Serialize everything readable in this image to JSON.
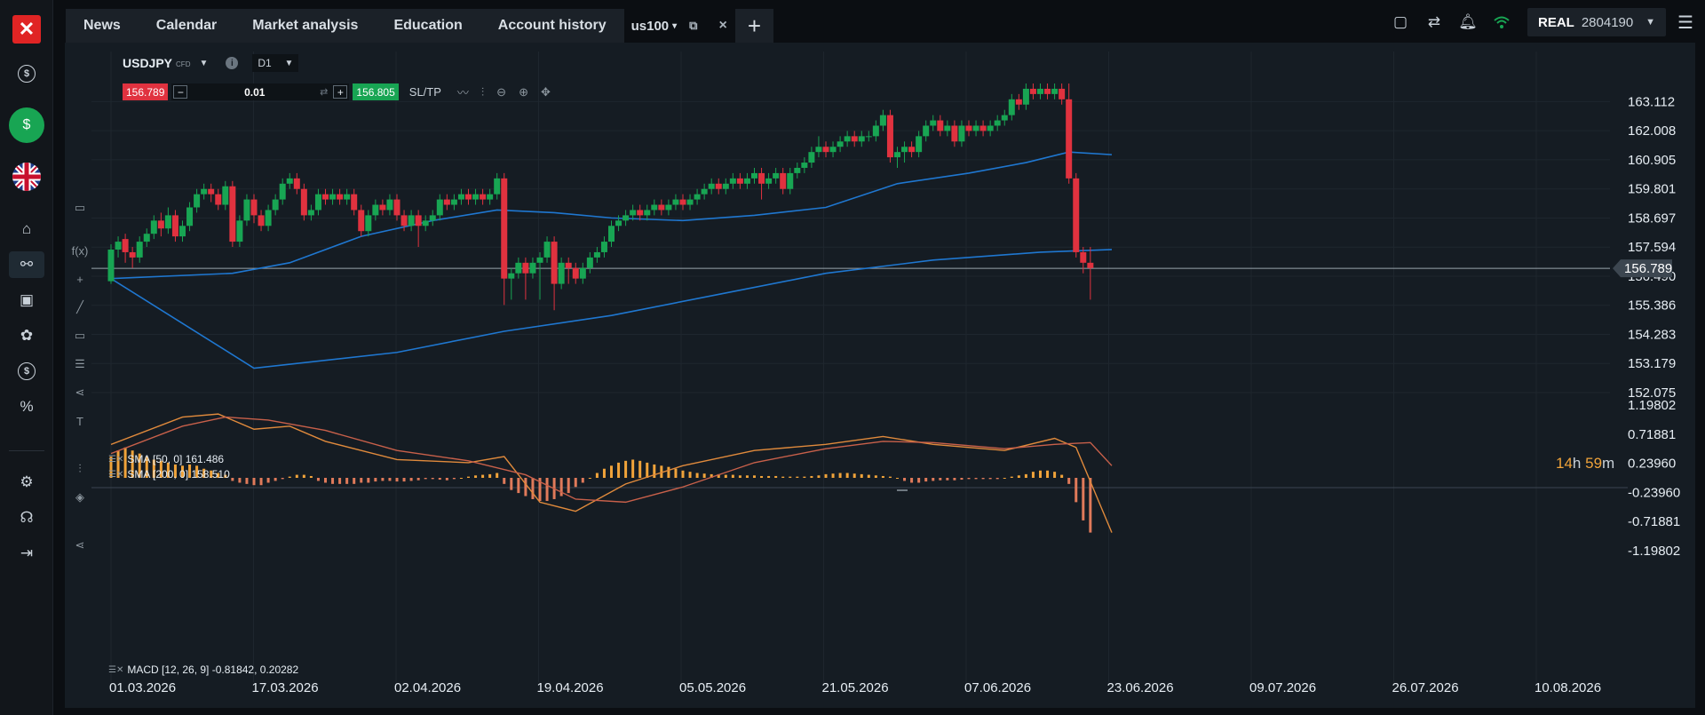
{
  "rail": {
    "logo": "✕",
    "items": [
      "dollar",
      "dollar-active",
      "flag-uk",
      "home",
      "chart",
      "news",
      "piggy",
      "coins",
      "percent",
      "settings",
      "support",
      "logout"
    ]
  },
  "tabs": [
    {
      "label": "News"
    },
    {
      "label": "Calendar"
    },
    {
      "label": "Market analysis"
    },
    {
      "label": "Education"
    },
    {
      "label": "Account history"
    }
  ],
  "active_tab": {
    "label": "us100",
    "caret": "▾",
    "close": "×"
  },
  "add_tab": "+",
  "account": {
    "type": "REAL",
    "number": "2804190"
  },
  "instrument": {
    "symbol": "USDJPY",
    "tag": "CFD",
    "info": "i",
    "timeframe": "D1"
  },
  "trade": {
    "sell": "156.789",
    "minus": "−",
    "lot": "0.01",
    "plus": "+",
    "buy": "156.805",
    "sltp": "SL/TP"
  },
  "indicators": {
    "sma50": "SMA [50, 0] 161.486",
    "sma200": "SMA [200, 0] 158.510",
    "macd": "MACD [12, 26, 9] -0.81842, 0.20282"
  },
  "timer": {
    "h": "14",
    "h_unit": "h",
    "m": "59",
    "m_unit": "m"
  },
  "colors": {
    "up": "#18a553",
    "down": "#e0323f",
    "sma": "#1f77d0",
    "macd_line": "#e08a3c",
    "signal_line": "#c8604a",
    "hist": "#f0a33a"
  },
  "chart_data": {
    "type": "candlestick",
    "title": "USDJPY D1",
    "x_ticks": [
      "01.03.2026",
      "17.03.2026",
      "02.04.2026",
      "19.04.2026",
      "05.05.2026",
      "21.05.2026",
      "07.06.2026",
      "23.06.2026",
      "09.07.2026",
      "26.07.2026",
      "10.08.2026"
    ],
    "price_ticks": [
      "163.112",
      "162.008",
      "160.905",
      "159.801",
      "158.697",
      "157.594",
      "156.490",
      "155.386",
      "154.283",
      "153.179",
      "152.075"
    ],
    "current_price": "156.789",
    "ylim": [
      152.075,
      163.8
    ],
    "macd_ticks": [
      "1.19802",
      "0.71881",
      "0.23960",
      "-0.23960",
      "-0.71881",
      "-1.19802"
    ],
    "macd_ylim": [
      -1.19802,
      1.19802
    ],
    "candles": [
      [
        0,
        156.3,
        157.5,
        156.2,
        157.7
      ],
      [
        1,
        157.5,
        157.8,
        157.2,
        158.0
      ],
      [
        2,
        157.9,
        157.4,
        157.0,
        158.1
      ],
      [
        3,
        157.4,
        157.2,
        156.8,
        157.6
      ],
      [
        4,
        157.2,
        157.8,
        157.0,
        158.0
      ],
      [
        5,
        157.8,
        158.1,
        157.6,
        158.3
      ],
      [
        6,
        158.1,
        158.6,
        157.9,
        158.8
      ],
      [
        7,
        158.6,
        158.3,
        158.0,
        158.9
      ],
      [
        8,
        158.3,
        158.8,
        158.1,
        159.1
      ],
      [
        9,
        158.8,
        158.0,
        157.8,
        159.0
      ],
      [
        10,
        158.0,
        158.4,
        157.8,
        158.6
      ],
      [
        11,
        158.4,
        159.1,
        158.2,
        159.3
      ],
      [
        12,
        159.1,
        159.6,
        158.9,
        159.8
      ],
      [
        13,
        159.6,
        159.8,
        159.4,
        160.0
      ],
      [
        14,
        159.8,
        159.6,
        159.3,
        160.0
      ],
      [
        15,
        159.6,
        159.2,
        159.0,
        159.8
      ],
      [
        16,
        159.2,
        159.9,
        159.0,
        160.1
      ],
      [
        17,
        159.9,
        157.8,
        157.6,
        160.1
      ],
      [
        18,
        157.8,
        158.6,
        157.6,
        158.8
      ],
      [
        19,
        158.6,
        159.4,
        158.4,
        159.6
      ],
      [
        20,
        159.4,
        158.8,
        158.5,
        159.6
      ],
      [
        21,
        158.8,
        158.4,
        158.2,
        159.0
      ],
      [
        22,
        158.4,
        159.0,
        158.2,
        159.2
      ],
      [
        23,
        159.0,
        159.4,
        158.8,
        159.6
      ],
      [
        24,
        159.4,
        160.0,
        159.2,
        160.2
      ],
      [
        25,
        160.0,
        160.2,
        159.8,
        160.4
      ],
      [
        26,
        160.2,
        159.8,
        159.6,
        160.4
      ],
      [
        27,
        159.8,
        158.8,
        158.6,
        160.0
      ],
      [
        28,
        158.8,
        159.0,
        158.6,
        159.2
      ],
      [
        29,
        159.0,
        159.6,
        158.8,
        159.8
      ],
      [
        30,
        159.6,
        159.4,
        159.2,
        159.8
      ],
      [
        31,
        159.4,
        159.6,
        159.2,
        159.8
      ],
      [
        32,
        159.6,
        159.4,
        159.2,
        159.8
      ],
      [
        33,
        159.4,
        159.6,
        159.2,
        159.8
      ],
      [
        34,
        159.6,
        159.0,
        158.8,
        159.8
      ],
      [
        35,
        159.0,
        158.2,
        158.0,
        159.2
      ],
      [
        36,
        158.2,
        158.8,
        158.0,
        159.0
      ],
      [
        37,
        158.8,
        159.2,
        158.6,
        159.4
      ],
      [
        38,
        159.2,
        159.0,
        158.8,
        159.4
      ],
      [
        39,
        159.0,
        159.4,
        158.8,
        159.6
      ],
      [
        40,
        159.4,
        158.8,
        158.6,
        159.6
      ],
      [
        41,
        158.8,
        158.4,
        158.2,
        159.0
      ],
      [
        42,
        158.4,
        158.8,
        158.2,
        159.0
      ],
      [
        43,
        158.8,
        158.4,
        157.6,
        159.0
      ],
      [
        44,
        158.4,
        158.6,
        158.2,
        158.8
      ],
      [
        45,
        158.6,
        158.8,
        158.4,
        159.0
      ],
      [
        46,
        158.8,
        159.4,
        158.6,
        159.6
      ],
      [
        47,
        159.4,
        159.2,
        159.0,
        159.6
      ],
      [
        48,
        159.2,
        159.4,
        159.0,
        159.6
      ],
      [
        49,
        159.4,
        159.6,
        159.2,
        159.8
      ],
      [
        50,
        159.6,
        159.4,
        159.2,
        159.8
      ],
      [
        51,
        159.4,
        159.6,
        159.2,
        159.8
      ],
      [
        52,
        159.6,
        159.4,
        159.2,
        159.8
      ],
      [
        53,
        159.4,
        159.6,
        159.2,
        159.8
      ],
      [
        54,
        159.6,
        160.2,
        159.4,
        160.4
      ],
      [
        55,
        160.2,
        156.4,
        155.4,
        160.4
      ],
      [
        56,
        156.4,
        156.6,
        155.6,
        156.8
      ],
      [
        57,
        156.6,
        157.0,
        156.4,
        157.2
      ],
      [
        58,
        157.0,
        156.6,
        155.6,
        157.2
      ],
      [
        59,
        156.6,
        157.0,
        156.4,
        157.2
      ],
      [
        60,
        157.0,
        157.2,
        155.6,
        157.4
      ],
      [
        61,
        157.2,
        157.8,
        157.0,
        158.0
      ],
      [
        62,
        157.8,
        156.2,
        155.2,
        158.0
      ],
      [
        63,
        156.2,
        157.0,
        156.0,
        157.2
      ],
      [
        64,
        157.0,
        156.8,
        156.2,
        157.2
      ],
      [
        65,
        156.8,
        156.4,
        156.2,
        157.0
      ],
      [
        66,
        156.4,
        156.8,
        156.2,
        157.0
      ],
      [
        67,
        156.8,
        157.2,
        156.6,
        157.4
      ],
      [
        68,
        157.2,
        157.4,
        157.0,
        157.6
      ],
      [
        69,
        157.4,
        157.8,
        157.2,
        158.0
      ],
      [
        70,
        157.8,
        158.4,
        157.6,
        158.6
      ],
      [
        71,
        158.4,
        158.6,
        158.2,
        158.8
      ],
      [
        72,
        158.6,
        158.8,
        158.4,
        159.0
      ],
      [
        73,
        158.8,
        159.0,
        158.6,
        159.2
      ],
      [
        74,
        159.0,
        158.8,
        158.6,
        159.2
      ],
      [
        75,
        158.8,
        159.0,
        158.6,
        159.2
      ],
      [
        76,
        159.0,
        159.2,
        158.8,
        159.4
      ],
      [
        77,
        159.2,
        159.0,
        158.8,
        159.4
      ],
      [
        78,
        159.0,
        159.2,
        158.8,
        159.4
      ],
      [
        79,
        159.2,
        159.4,
        159.0,
        159.6
      ],
      [
        80,
        159.4,
        159.2,
        159.0,
        159.6
      ],
      [
        81,
        159.2,
        159.4,
        159.0,
        159.6
      ],
      [
        82,
        159.4,
        159.6,
        159.2,
        159.8
      ],
      [
        83,
        159.6,
        159.8,
        159.4,
        160.0
      ],
      [
        84,
        159.8,
        160.0,
        159.6,
        160.2
      ],
      [
        85,
        160.0,
        159.8,
        159.6,
        160.2
      ],
      [
        86,
        159.8,
        160.0,
        159.6,
        160.2
      ],
      [
        87,
        160.0,
        160.2,
        159.8,
        160.4
      ],
      [
        88,
        160.2,
        160.0,
        159.8,
        160.4
      ],
      [
        89,
        160.0,
        160.2,
        159.8,
        160.4
      ],
      [
        90,
        160.2,
        160.4,
        160.0,
        160.6
      ],
      [
        91,
        160.4,
        160.0,
        159.4,
        160.6
      ],
      [
        92,
        160.0,
        160.2,
        159.8,
        160.4
      ],
      [
        93,
        160.2,
        160.4,
        160.0,
        160.6
      ],
      [
        94,
        160.4,
        159.8,
        159.6,
        160.6
      ],
      [
        95,
        159.8,
        160.4,
        159.6,
        160.6
      ],
      [
        96,
        160.4,
        160.6,
        160.2,
        160.8
      ],
      [
        97,
        160.6,
        160.8,
        160.4,
        161.0
      ],
      [
        98,
        160.8,
        161.2,
        160.6,
        161.4
      ],
      [
        99,
        161.2,
        161.4,
        161.0,
        161.8
      ],
      [
        100,
        161.4,
        161.2,
        161.0,
        161.6
      ],
      [
        101,
        161.2,
        161.4,
        161.0,
        161.6
      ],
      [
        102,
        161.4,
        161.6,
        161.2,
        161.8
      ],
      [
        103,
        161.6,
        161.8,
        161.4,
        162.0
      ],
      [
        104,
        161.8,
        161.6,
        161.4,
        162.0
      ],
      [
        105,
        161.6,
        161.8,
        161.4,
        162.0
      ],
      [
        106,
        161.8,
        161.8,
        161.6,
        162.0
      ],
      [
        107,
        161.8,
        162.2,
        161.6,
        162.4
      ],
      [
        108,
        162.2,
        162.6,
        162.0,
        162.8
      ],
      [
        109,
        162.6,
        161.0,
        160.8,
        162.8
      ],
      [
        110,
        161.0,
        161.2,
        160.6,
        161.4
      ],
      [
        111,
        161.2,
        161.4,
        160.8,
        161.6
      ],
      [
        112,
        161.4,
        161.2,
        161.0,
        161.6
      ],
      [
        113,
        161.2,
        161.8,
        161.0,
        162.0
      ],
      [
        114,
        161.8,
        162.2,
        161.6,
        162.4
      ],
      [
        115,
        162.2,
        162.4,
        162.0,
        162.6
      ],
      [
        116,
        162.4,
        162.0,
        161.8,
        162.6
      ],
      [
        117,
        162.0,
        162.2,
        161.8,
        162.4
      ],
      [
        118,
        162.2,
        161.6,
        161.4,
        162.4
      ],
      [
        119,
        161.6,
        162.2,
        161.4,
        162.4
      ],
      [
        120,
        162.2,
        162.0,
        161.8,
        162.4
      ],
      [
        121,
        162.0,
        162.2,
        161.8,
        162.4
      ],
      [
        122,
        162.2,
        162.0,
        161.8,
        162.4
      ],
      [
        123,
        162.0,
        162.2,
        161.8,
        162.4
      ],
      [
        124,
        162.2,
        162.4,
        162.0,
        162.6
      ],
      [
        125,
        162.4,
        162.6,
        162.2,
        162.8
      ],
      [
        126,
        162.6,
        163.2,
        162.4,
        163.4
      ],
      [
        127,
        163.2,
        163.0,
        162.8,
        163.4
      ],
      [
        128,
        163.0,
        163.6,
        162.8,
        163.8
      ],
      [
        129,
        163.6,
        163.4,
        163.2,
        163.8
      ],
      [
        130,
        163.4,
        163.6,
        163.2,
        163.8
      ],
      [
        131,
        163.6,
        163.4,
        163.2,
        163.8
      ],
      [
        132,
        163.4,
        163.6,
        163.2,
        163.8
      ],
      [
        133,
        163.6,
        163.2,
        163.0,
        163.8
      ],
      [
        134,
        163.2,
        160.2,
        160.0,
        163.8
      ],
      [
        135,
        160.2,
        157.4,
        157.2,
        160.4
      ],
      [
        136,
        157.4,
        157.0,
        156.6,
        157.6
      ],
      [
        137,
        157.0,
        156.8,
        155.6,
        157.6
      ]
    ],
    "sma50": [
      [
        0,
        156.4
      ],
      [
        17,
        156.6
      ],
      [
        25,
        157.0
      ],
      [
        35,
        158.0
      ],
      [
        45,
        158.6
      ],
      [
        54,
        159.0
      ],
      [
        62,
        158.9
      ],
      [
        70,
        158.7
      ],
      [
        80,
        158.6
      ],
      [
        90,
        158.8
      ],
      [
        100,
        159.1
      ],
      [
        110,
        160.0
      ],
      [
        120,
        160.4
      ],
      [
        128,
        160.8
      ],
      [
        134,
        161.2
      ],
      [
        140,
        161.1
      ]
    ],
    "sma200": [
      [
        0,
        156.4
      ],
      [
        20,
        153.0
      ],
      [
        40,
        153.6
      ],
      [
        55,
        154.4
      ],
      [
        70,
        155.0
      ],
      [
        85,
        155.8
      ],
      [
        100,
        156.6
      ],
      [
        115,
        157.1
      ],
      [
        130,
        157.4
      ],
      [
        140,
        157.5
      ]
    ],
    "macd_line": [
      [
        0,
        0.55
      ],
      [
        10,
        1.0
      ],
      [
        15,
        1.05
      ],
      [
        20,
        0.8
      ],
      [
        25,
        0.85
      ],
      [
        30,
        0.6
      ],
      [
        40,
        0.3
      ],
      [
        50,
        0.25
      ],
      [
        55,
        0.35
      ],
      [
        60,
        -0.4
      ],
      [
        65,
        -0.55
      ],
      [
        72,
        -0.1
      ],
      [
        80,
        0.2
      ],
      [
        90,
        0.45
      ],
      [
        100,
        0.55
      ],
      [
        108,
        0.68
      ],
      [
        115,
        0.55
      ],
      [
        125,
        0.45
      ],
      [
        132,
        0.65
      ],
      [
        135,
        0.5
      ],
      [
        140,
        -0.9
      ]
    ],
    "signal_line": [
      [
        0,
        0.4
      ],
      [
        10,
        0.85
      ],
      [
        16,
        1.0
      ],
      [
        22,
        0.95
      ],
      [
        30,
        0.78
      ],
      [
        40,
        0.45
      ],
      [
        50,
        0.28
      ],
      [
        58,
        0.05
      ],
      [
        65,
        -0.35
      ],
      [
        72,
        -0.4
      ],
      [
        80,
        -0.15
      ],
      [
        90,
        0.25
      ],
      [
        100,
        0.48
      ],
      [
        108,
        0.6
      ],
      [
        115,
        0.58
      ],
      [
        125,
        0.48
      ],
      [
        132,
        0.55
      ],
      [
        137,
        0.58
      ],
      [
        140,
        0.2
      ]
    ],
    "histogram": [
      0.35,
      0.45,
      0.5,
      0.45,
      0.4,
      0.35,
      0.3,
      0.28,
      0.25,
      0.22,
      0.2,
      0.22,
      0.2,
      0.15,
      0.12,
      0.08,
      0.05,
      -0.05,
      -0.08,
      -0.1,
      -0.12,
      -0.12,
      -0.08,
      -0.05,
      -0.02,
      0.02,
      0.05,
      0.05,
      0.03,
      -0.05,
      -0.08,
      -0.1,
      -0.1,
      -0.1,
      -0.1,
      -0.08,
      -0.08,
      -0.06,
      -0.05,
      -0.05,
      -0.06,
      -0.06,
      -0.05,
      -0.04,
      -0.02,
      -0.02,
      -0.03,
      -0.04,
      -0.02,
      0.0,
      0.02,
      0.04,
      0.05,
      0.06,
      0.08,
      -0.1,
      -0.2,
      -0.25,
      -0.3,
      -0.35,
      -0.38,
      -0.38,
      -0.35,
      -0.3,
      -0.25,
      -0.15,
      -0.08,
      0.0,
      0.08,
      0.15,
      0.2,
      0.25,
      0.28,
      0.3,
      0.28,
      0.25,
      0.22,
      0.2,
      0.18,
      0.15,
      0.12,
      0.1,
      0.08,
      0.07,
      0.06,
      0.06,
      0.05,
      0.05,
      0.04,
      0.04,
      0.04,
      0.03,
      0.03,
      0.03,
      0.02,
      0.02,
      0.02,
      0.02,
      0.03,
      0.04,
      0.06,
      0.07,
      0.08,
      0.08,
      0.07,
      0.06,
      0.05,
      0.04,
      0.03,
      0.02,
      0.0,
      -0.05,
      -0.08,
      -0.08,
      -0.06,
      -0.05,
      -0.04,
      -0.04,
      -0.04,
      -0.03,
      -0.02,
      -0.02,
      -0.02,
      -0.02,
      -0.02,
      0.0,
      0.02,
      0.04,
      0.06,
      0.1,
      0.12,
      0.12,
      0.1,
      0.05,
      -0.1,
      -0.4,
      -0.7,
      -0.9
    ]
  }
}
